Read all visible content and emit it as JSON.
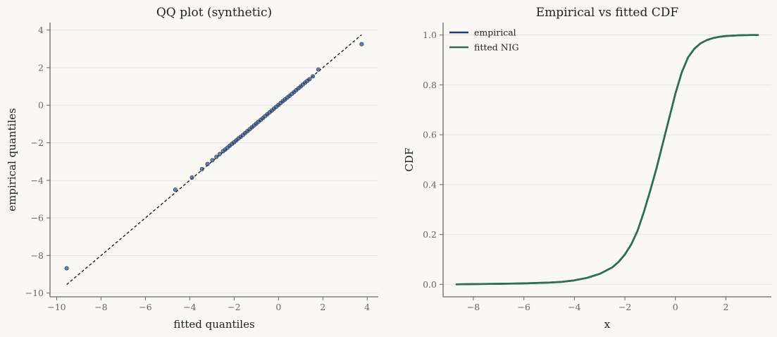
{
  "colors": {
    "background": "#f9f8f4",
    "axis": "#666666",
    "grid": "#e2e2de",
    "qq_points": "#3b5a8c",
    "empirical": "#1f3a6e",
    "fitted": "#2e6e52",
    "reference_line": "#111111"
  },
  "chart_data": [
    {
      "type": "scatter",
      "title": "QQ plot (synthetic)",
      "xlabel": "fitted quantiles",
      "ylabel": "empirical quantiles",
      "xlim": [
        -10.3,
        4.5
      ],
      "ylim": [
        -10.2,
        4.4
      ],
      "xticks": [
        -10,
        -8,
        -6,
        -4,
        -2,
        0,
        2,
        4
      ],
      "xtick_labels": [
        "−10",
        "−8",
        "−6",
        "−4",
        "−2",
        "0",
        "2",
        "4"
      ],
      "yticks": [
        -10,
        -8,
        -6,
        -4,
        -2,
        0,
        2,
        4
      ],
      "ytick_labels": [
        "−10",
        "−8",
        "−6",
        "−4",
        "−2",
        "0",
        "2",
        "4"
      ],
      "grid": "y",
      "reference_line": {
        "x": [
          -9.55,
          3.75
        ],
        "y": [
          -9.55,
          3.75
        ],
        "style": "dashed"
      },
      "points": [
        [
          -9.55,
          -8.68
        ],
        [
          -4.65,
          -4.5
        ],
        [
          -3.9,
          -3.85
        ],
        [
          -3.45,
          -3.4
        ],
        [
          -3.2,
          -3.13
        ],
        [
          -2.98,
          -2.93
        ],
        [
          -2.8,
          -2.75
        ],
        [
          -2.65,
          -2.6
        ],
        [
          -2.5,
          -2.45
        ],
        [
          -2.4,
          -2.36
        ],
        [
          -2.3,
          -2.26
        ],
        [
          -2.2,
          -2.16
        ],
        [
          -2.1,
          -2.06
        ],
        [
          -2.0,
          -1.97
        ],
        [
          -1.9,
          -1.87
        ],
        [
          -1.8,
          -1.77
        ],
        [
          -1.7,
          -1.68
        ],
        [
          -1.6,
          -1.58
        ],
        [
          -1.5,
          -1.48
        ],
        [
          -1.4,
          -1.38
        ],
        [
          -1.3,
          -1.28
        ],
        [
          -1.2,
          -1.18
        ],
        [
          -1.1,
          -1.08
        ],
        [
          -1.0,
          -0.98
        ],
        [
          -0.9,
          -0.88
        ],
        [
          -0.8,
          -0.78
        ],
        [
          -0.7,
          -0.68
        ],
        [
          -0.6,
          -0.58
        ],
        [
          -0.5,
          -0.48
        ],
        [
          -0.4,
          -0.38
        ],
        [
          -0.3,
          -0.28
        ],
        [
          -0.2,
          -0.18
        ],
        [
          -0.1,
          -0.08
        ],
        [
          0.0,
          0.02
        ],
        [
          0.1,
          0.12
        ],
        [
          0.2,
          0.22
        ],
        [
          0.3,
          0.31
        ],
        [
          0.4,
          0.41
        ],
        [
          0.5,
          0.5
        ],
        [
          0.6,
          0.6
        ],
        [
          0.7,
          0.7
        ],
        [
          0.8,
          0.8
        ],
        [
          0.9,
          0.9
        ],
        [
          1.0,
          1.0
        ],
        [
          1.1,
          1.1
        ],
        [
          1.2,
          1.2
        ],
        [
          1.3,
          1.3
        ],
        [
          1.4,
          1.39
        ],
        [
          1.55,
          1.54
        ],
        [
          1.8,
          1.9
        ],
        [
          3.75,
          3.25
        ]
      ]
    },
    {
      "type": "line",
      "title": "Empirical vs fitted CDF",
      "xlabel": "x",
      "ylabel": "CDF",
      "xlim": [
        -9.2,
        3.8
      ],
      "ylim": [
        -0.05,
        1.05
      ],
      "xticks": [
        -8,
        -6,
        -4,
        -2,
        0,
        2
      ],
      "xtick_labels": [
        "−8",
        "−6",
        "−4",
        "−2",
        "0",
        "2"
      ],
      "yticks": [
        0.0,
        0.2,
        0.4,
        0.6,
        0.8,
        1.0
      ],
      "ytick_labels": [
        "0.0",
        "0.2",
        "0.4",
        "0.6",
        "0.8",
        "1.0"
      ],
      "grid": "y",
      "legend": "top-left",
      "x": [
        -8.7,
        -8,
        -7,
        -6,
        -5,
        -4.5,
        -4,
        -3.5,
        -3,
        -2.5,
        -2.25,
        -2,
        -1.75,
        -1.5,
        -1.25,
        -1,
        -0.75,
        -0.5,
        -0.25,
        0,
        0.25,
        0.5,
        0.75,
        1,
        1.25,
        1.5,
        1.75,
        2,
        2.5,
        3,
        3.3
      ],
      "series": [
        {
          "name": "empirical",
          "values": [
            0.0,
            0.001,
            0.002,
            0.004,
            0.007,
            0.01,
            0.016,
            0.026,
            0.042,
            0.068,
            0.09,
            0.12,
            0.16,
            0.215,
            0.29,
            0.375,
            0.465,
            0.565,
            0.665,
            0.765,
            0.85,
            0.91,
            0.945,
            0.967,
            0.98,
            0.988,
            0.993,
            0.996,
            0.999,
            1.0,
            1.0
          ]
        },
        {
          "name": "fitted NIG",
          "values": [
            0.0,
            0.001,
            0.002,
            0.004,
            0.007,
            0.01,
            0.016,
            0.026,
            0.042,
            0.068,
            0.09,
            0.12,
            0.16,
            0.215,
            0.29,
            0.375,
            0.465,
            0.565,
            0.665,
            0.765,
            0.85,
            0.91,
            0.945,
            0.967,
            0.98,
            0.988,
            0.993,
            0.996,
            0.999,
            1.0,
            1.0
          ]
        }
      ]
    }
  ]
}
